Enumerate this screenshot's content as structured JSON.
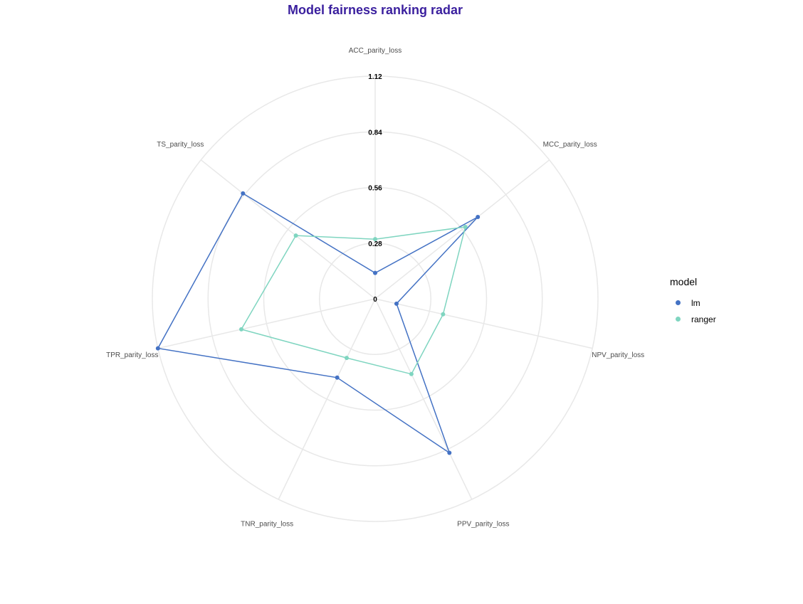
{
  "chart_data": {
    "type": "radar",
    "title": "Model fairness ranking radar",
    "title_color": "#3a1f9e",
    "axes": [
      "ACC_parity_loss",
      "MCC_parity_loss",
      "NPV_parity_loss",
      "PPV_parity_loss",
      "TNR_parity_loss",
      "TPR_parity_loss",
      "TS_parity_loss"
    ],
    "radial_ticks": [
      "0",
      "0.28",
      "0.56",
      "0.84",
      "1.12"
    ],
    "radial_tick_values": [
      0,
      0.28,
      0.56,
      0.84,
      1.12
    ],
    "r_max": 1.12,
    "grid": true,
    "legend": {
      "title": "model",
      "position": "right"
    },
    "series": [
      {
        "name": "lm",
        "color": "#4472c4",
        "values": [
          0.13,
          0.66,
          0.11,
          0.86,
          0.44,
          1.12,
          0.85
        ]
      },
      {
        "name": "ranger",
        "color": "#7fd5c0",
        "values": [
          0.3,
          0.58,
          0.35,
          0.42,
          0.33,
          0.69,
          0.51
        ]
      }
    ]
  }
}
